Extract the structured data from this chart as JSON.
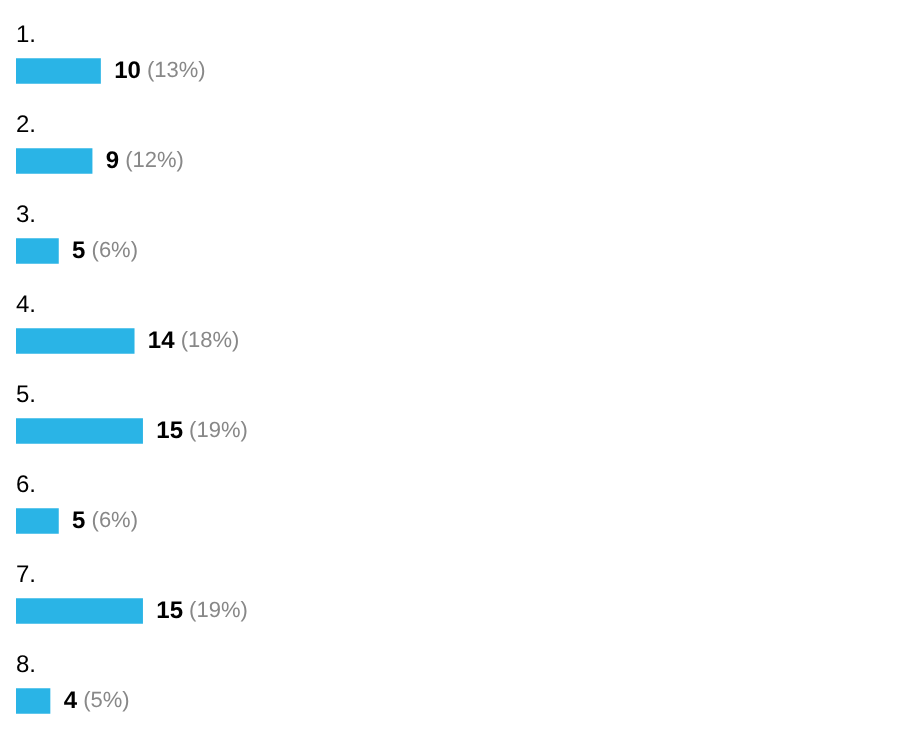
{
  "chart_data": {
    "type": "bar",
    "orientation": "horizontal",
    "categories": [
      "1.",
      "2.",
      "3.",
      "4.",
      "5.",
      "6.",
      "7.",
      "8."
    ],
    "values": [
      10,
      9,
      5,
      14,
      15,
      5,
      15,
      4
    ],
    "value_labels": [
      "10 (13%)",
      "9 (12%)",
      "5 (6%)",
      "14 (18%)",
      "15 (19%)",
      "5 (6%)",
      "15 (19%)",
      "4 (5%)"
    ],
    "color": "#2ab4e6",
    "grid": false,
    "legend": false
  }
}
